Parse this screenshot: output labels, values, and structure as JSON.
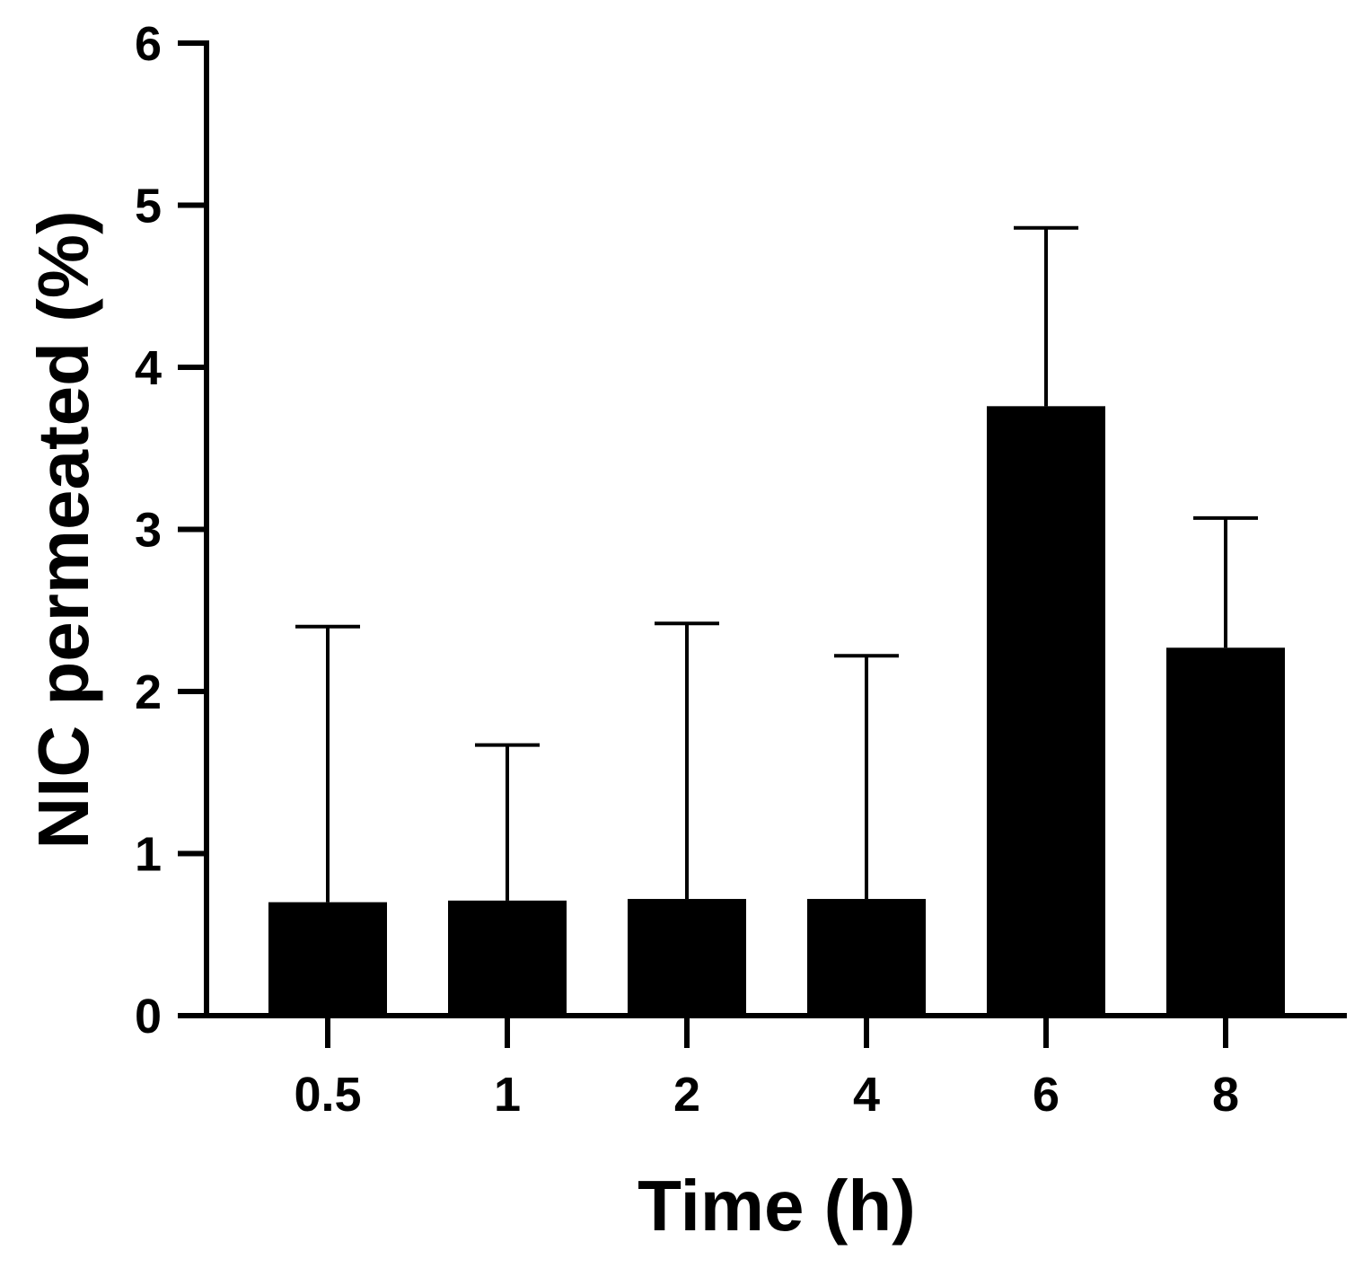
{
  "chart_data": {
    "type": "bar",
    "title": "",
    "xlabel": "Time (h)",
    "ylabel": "NIC permeated (%)",
    "categories": [
      "0.5",
      "1",
      "2",
      "4",
      "6",
      "8"
    ],
    "values": [
      0.7,
      0.71,
      0.72,
      0.72,
      3.76,
      2.27
    ],
    "error_upper": [
      2.4,
      1.67,
      2.42,
      2.22,
      4.86,
      3.07
    ],
    "ylim": [
      0,
      6
    ],
    "yticks": [
      "0",
      "1",
      "2",
      "3",
      "4",
      "5",
      "6"
    ],
    "grid": false,
    "legend": "none",
    "bar_color": "#000000"
  }
}
